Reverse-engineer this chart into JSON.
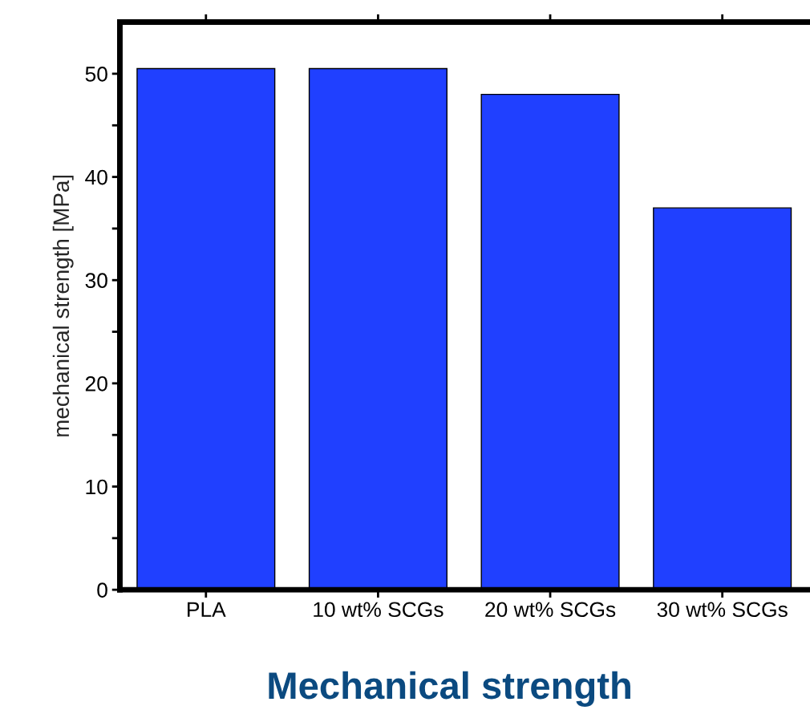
{
  "chart_data": {
    "type": "bar",
    "title": "Mechanical strength",
    "ylabel": "mechanical strength [MPa]",
    "categories": [
      "PLA",
      "10 wt% SCGs",
      "20 wt% SCGs",
      "30 wt% SCGs"
    ],
    "values": [
      50.5,
      50.5,
      48,
      37
    ],
    "color": "#2040ff",
    "ylim": [
      0,
      55
    ],
    "yticks": [
      0,
      {
        "value": 5,
        "label": null
      },
      10,
      {
        "value": 15,
        "label": null
      },
      20,
      {
        "value": 25,
        "label": null
      },
      30,
      {
        "value": 35,
        "label": null
      },
      40,
      {
        "value": 45,
        "label": null
      },
      50
    ],
    "grid": false
  }
}
